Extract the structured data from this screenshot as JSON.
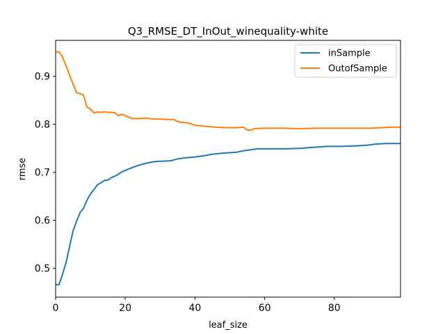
{
  "chart_data": {
    "type": "line",
    "title": "Q3_RMSE_DT_InOut_winequality-white",
    "xlabel": "leaf_size",
    "ylabel": "rmse",
    "xlim": [
      0,
      99
    ],
    "ylim": [
      0.44,
      0.975
    ],
    "xticks": [
      0,
      20,
      40,
      60,
      80
    ],
    "yticks": [
      0.5,
      0.6,
      0.7,
      0.8,
      0.9
    ],
    "xtick_labels": [
      "0",
      "20",
      "40",
      "60",
      "80"
    ],
    "ytick_labels": [
      "0.5",
      "0.6",
      "0.7",
      "0.8",
      "0.9"
    ],
    "grid": false,
    "legend_position": "top-right",
    "series": [
      {
        "name": "inSample",
        "color": "#1f77b4",
        "points": [
          [
            0,
            0.466
          ],
          [
            1,
            0.466
          ],
          [
            2,
            0.488
          ],
          [
            3,
            0.512
          ],
          [
            4,
            0.545
          ],
          [
            5,
            0.578
          ],
          [
            6,
            0.598
          ],
          [
            7,
            0.616
          ],
          [
            8,
            0.625
          ],
          [
            9,
            0.642
          ],
          [
            10,
            0.655
          ],
          [
            11,
            0.664
          ],
          [
            12,
            0.674
          ],
          [
            13,
            0.678
          ],
          [
            14,
            0.683
          ],
          [
            15,
            0.684
          ],
          [
            16,
            0.689
          ],
          [
            17,
            0.692
          ],
          [
            18,
            0.696
          ],
          [
            19,
            0.701
          ],
          [
            20,
            0.704
          ],
          [
            22,
            0.71
          ],
          [
            24,
            0.715
          ],
          [
            26,
            0.719
          ],
          [
            28,
            0.722
          ],
          [
            30,
            0.723
          ],
          [
            33,
            0.724
          ],
          [
            35,
            0.728
          ],
          [
            37,
            0.73
          ],
          [
            40,
            0.732
          ],
          [
            43,
            0.735
          ],
          [
            45,
            0.738
          ],
          [
            48,
            0.74
          ],
          [
            52,
            0.742
          ],
          [
            54,
            0.745
          ],
          [
            56,
            0.747
          ],
          [
            58,
            0.749
          ],
          [
            62,
            0.749
          ],
          [
            66,
            0.749
          ],
          [
            70,
            0.75
          ],
          [
            74,
            0.752
          ],
          [
            78,
            0.754
          ],
          [
            82,
            0.754
          ],
          [
            86,
            0.755
          ],
          [
            90,
            0.757
          ],
          [
            92,
            0.759
          ],
          [
            95,
            0.76
          ],
          [
            99,
            0.76
          ]
        ]
      },
      {
        "name": "OutofSample",
        "color": "#ff7f0e",
        "points": [
          [
            0,
            0.951
          ],
          [
            1,
            0.951
          ],
          [
            2,
            0.94
          ],
          [
            3,
            0.922
          ],
          [
            4,
            0.903
          ],
          [
            5,
            0.884
          ],
          [
            6,
            0.866
          ],
          [
            7,
            0.864
          ],
          [
            8,
            0.861
          ],
          [
            9,
            0.836
          ],
          [
            10,
            0.832
          ],
          [
            11,
            0.824
          ],
          [
            12,
            0.826
          ],
          [
            13,
            0.825
          ],
          [
            14,
            0.826
          ],
          [
            15,
            0.825
          ],
          [
            16,
            0.825
          ],
          [
            17,
            0.824
          ],
          [
            18,
            0.818
          ],
          [
            19,
            0.821
          ],
          [
            20,
            0.818
          ],
          [
            21,
            0.815
          ],
          [
            22,
            0.812
          ],
          [
            24,
            0.812
          ],
          [
            26,
            0.813
          ],
          [
            28,
            0.811
          ],
          [
            30,
            0.811
          ],
          [
            32,
            0.81
          ],
          [
            34,
            0.81
          ],
          [
            35,
            0.806
          ],
          [
            36,
            0.804
          ],
          [
            38,
            0.803
          ],
          [
            40,
            0.798
          ],
          [
            43,
            0.796
          ],
          [
            46,
            0.794
          ],
          [
            49,
            0.793
          ],
          [
            52,
            0.793
          ],
          [
            54,
            0.794
          ],
          [
            55,
            0.788
          ],
          [
            56,
            0.788
          ],
          [
            57,
            0.791
          ],
          [
            60,
            0.792
          ],
          [
            65,
            0.792
          ],
          [
            70,
            0.791
          ],
          [
            75,
            0.792
          ],
          [
            80,
            0.792
          ],
          [
            85,
            0.792
          ],
          [
            90,
            0.792
          ],
          [
            94,
            0.793
          ],
          [
            96,
            0.794
          ],
          [
            99,
            0.794
          ]
        ]
      }
    ]
  }
}
